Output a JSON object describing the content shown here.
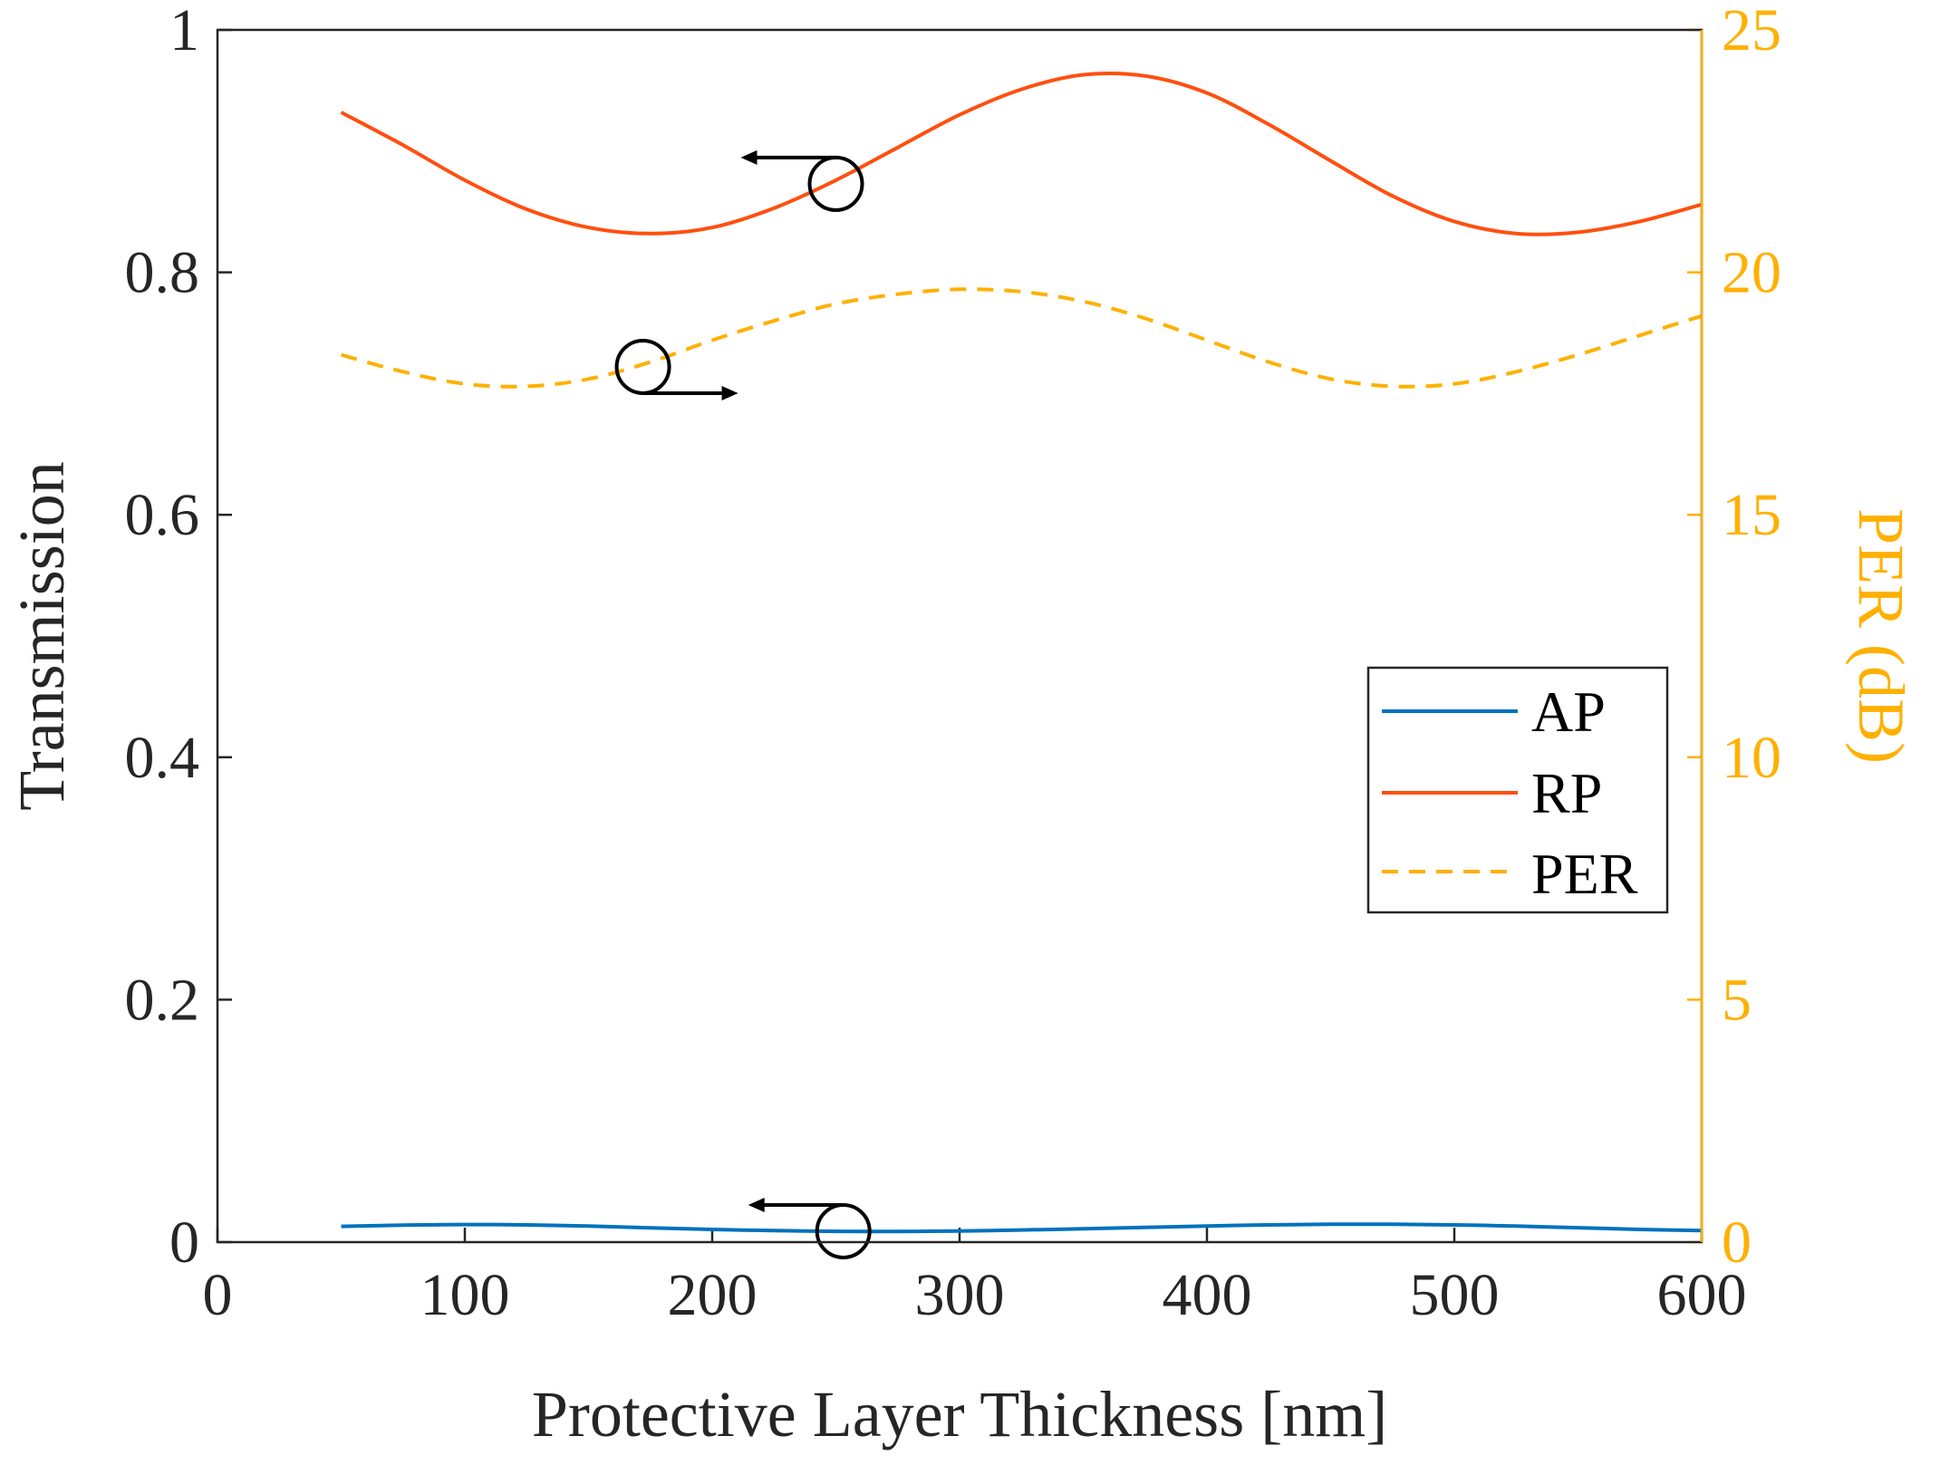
{
  "colors": {
    "axis_left": "#262626",
    "axis_right": "#FFB000",
    "ap": "#0072BD",
    "rp": "#FF4F0F",
    "per": "#FFB000",
    "annotation": "#000000"
  },
  "chart_data": {
    "type": "line",
    "title": "",
    "xlabel": "Protective Layer Thickness [nm]",
    "ylabel": "Transmission",
    "ylabel_right": "PER (dB)",
    "xlim": [
      0,
      600
    ],
    "ylim": [
      0,
      1
    ],
    "ylim_right": [
      0,
      25
    ],
    "x_ticks": [
      "0",
      "100",
      "200",
      "300",
      "400",
      "500",
      "600"
    ],
    "y_ticks": [
      "0",
      "0.2",
      "0.4",
      "0.6",
      "0.8",
      "1"
    ],
    "y_ticks_right": [
      "0",
      "5",
      "10",
      "15",
      "20",
      "25"
    ],
    "grid": false,
    "legend_position": "right",
    "x": [
      50,
      75,
      100,
      125,
      150,
      175,
      200,
      225,
      250,
      275,
      300,
      325,
      350,
      375,
      400,
      425,
      450,
      475,
      500,
      525,
      550,
      575,
      600
    ],
    "series": [
      {
        "name": "AP",
        "axis": "left",
        "style": "solid",
        "values": [
          0.013,
          0.014,
          0.0145,
          0.0142,
          0.0132,
          0.0118,
          0.0105,
          0.0095,
          0.0089,
          0.0088,
          0.0092,
          0.01,
          0.011,
          0.0122,
          0.0133,
          0.0142,
          0.0147,
          0.0147,
          0.0142,
          0.0132,
          0.0119,
          0.0105,
          0.0095
        ]
      },
      {
        "name": "RP",
        "axis": "left",
        "style": "solid",
        "values": [
          0.932,
          0.905,
          0.876,
          0.852,
          0.837,
          0.832,
          0.837,
          0.853,
          0.876,
          0.903,
          0.93,
          0.951,
          0.963,
          0.962,
          0.948,
          0.922,
          0.892,
          0.863,
          0.842,
          0.832,
          0.833,
          0.842,
          0.856
        ]
      },
      {
        "name": "PER",
        "axis": "right",
        "style": "dashed",
        "values": [
          18.3,
          17.95,
          17.7,
          17.65,
          17.8,
          18.15,
          18.6,
          19.0,
          19.35,
          19.55,
          19.65,
          19.6,
          19.4,
          19.05,
          18.6,
          18.15,
          17.8,
          17.65,
          17.7,
          17.95,
          18.3,
          18.7,
          19.1
        ]
      }
    ],
    "annotations": [
      {
        "target": "RP",
        "arrow_direction": "left",
        "x": 250,
        "y": 0.873
      },
      {
        "target": "PER",
        "arrow_direction": "right",
        "x": 172,
        "y": 0.722
      },
      {
        "target": "AP",
        "arrow_direction": "left",
        "x": 253,
        "y": 0.009
      }
    ]
  }
}
